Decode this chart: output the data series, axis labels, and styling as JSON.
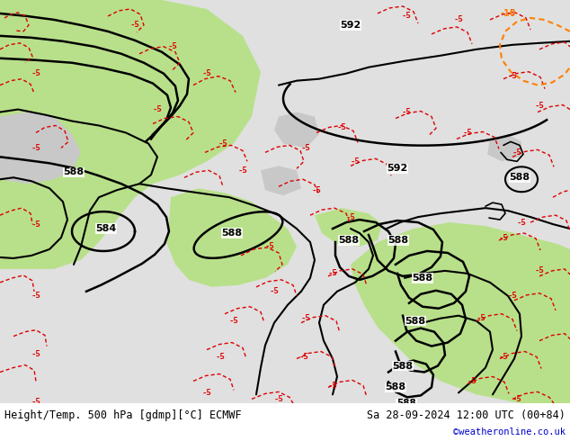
{
  "title_left": "Height/Temp. 500 hPa [gdmp][°C] ECMWF",
  "title_right": "Sa 28-09-2024 12:00 UTC (00+84)",
  "credit": "©weatheronline.co.uk",
  "bg_color": "#ffffff",
  "sea_color": "#e0e0e0",
  "land_color": "#c8c8c8",
  "green_fill": "#b8e08a",
  "contour_color_black": "#000000",
  "contour_color_red": "#dd0000",
  "contour_color_orange": "#ff8000",
  "label_fontsize": 8,
  "title_fontsize": 8.5,
  "credit_fontsize": 7.5,
  "credit_color": "#0000cc"
}
